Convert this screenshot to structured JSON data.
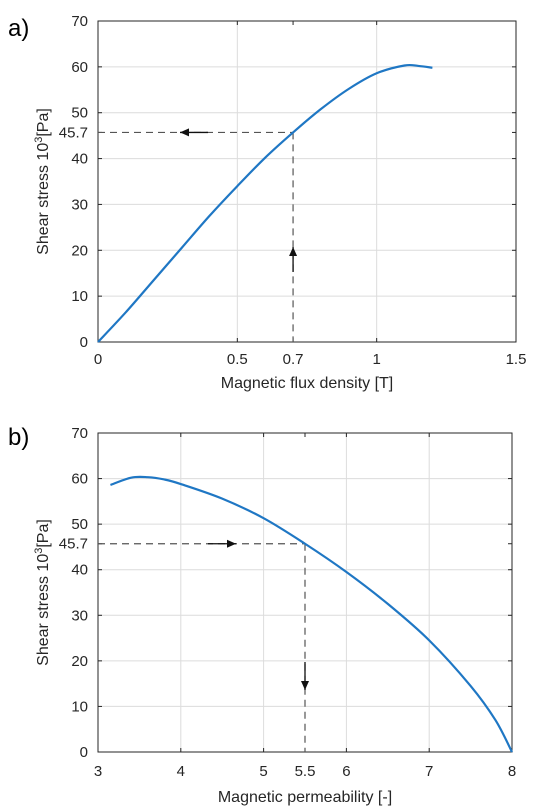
{
  "chart_data": [
    {
      "type": "line",
      "panel_label": "a)",
      "xlabel": "Magnetic flux density [T]",
      "ylabel": "Shear stress 10",
      "ylabel_sup": "3",
      "ylabel_unit": "[Pa]",
      "xlim": [
        0,
        1.5
      ],
      "ylim": [
        0,
        70
      ],
      "xticks": [
        0,
        0.5,
        0.7,
        1,
        1.5
      ],
      "xtick_labels": [
        "0",
        "0.5",
        "0.7",
        "1",
        "1.5"
      ],
      "yticks": [
        0,
        10,
        20,
        30,
        40,
        45.7,
        50,
        60,
        70
      ],
      "ytick_labels": [
        "0",
        "10",
        "20",
        "30",
        "40",
        "45.7",
        "50",
        "60",
        "70"
      ],
      "grid": true,
      "color": "#1f77c4",
      "series": [
        {
          "x": [
            0,
            0.1,
            0.2,
            0.3,
            0.4,
            0.5,
            0.6,
            0.7,
            0.8,
            0.9,
            1.0,
            1.1,
            1.15,
            1.2
          ],
          "y": [
            0,
            6.5,
            13.5,
            20.5,
            27.5,
            34,
            40.2,
            45.7,
            50.8,
            55.2,
            58.6,
            60.3,
            60.2,
            59.8
          ]
        }
      ],
      "annotation": {
        "x": 0.7,
        "y": 45.7,
        "description": "dashed lines with arrows from x = 0.7 up to curve, then left to y = 45.7"
      }
    },
    {
      "type": "line",
      "panel_label": "b)",
      "xlabel": "Magnetic permeability [-]",
      "ylabel": "Shear stress 10",
      "ylabel_sup": "3",
      "ylabel_unit": "[Pa]",
      "xlim": [
        3,
        8
      ],
      "ylim": [
        0,
        70
      ],
      "xticks": [
        3,
        4,
        5,
        5.5,
        6,
        7,
        8
      ],
      "xtick_labels": [
        "3",
        "4",
        "5",
        "5.5",
        "6",
        "7",
        "8"
      ],
      "yticks": [
        0,
        10,
        20,
        30,
        40,
        45.7,
        50,
        60,
        70
      ],
      "ytick_labels": [
        "0",
        "10",
        "20",
        "30",
        "40",
        "45.7",
        "50",
        "60",
        "70"
      ],
      "grid": true,
      "color": "#1f77c4",
      "series": [
        {
          "x": [
            3.15,
            3.4,
            3.6,
            3.8,
            4.0,
            4.5,
            5.0,
            5.5,
            6.0,
            6.5,
            7.0,
            7.5,
            7.8,
            8.0
          ],
          "y": [
            58.6,
            60.2,
            60.3,
            59.8,
            58.8,
            55.6,
            51.3,
            45.7,
            39.5,
            32.5,
            24.5,
            14.5,
            7,
            0
          ]
        }
      ],
      "annotation": {
        "x": 5.5,
        "y": 45.7,
        "description": "dashed lines with arrows from y = 45.7 right to curve, then down to x = 5.5"
      }
    }
  ]
}
